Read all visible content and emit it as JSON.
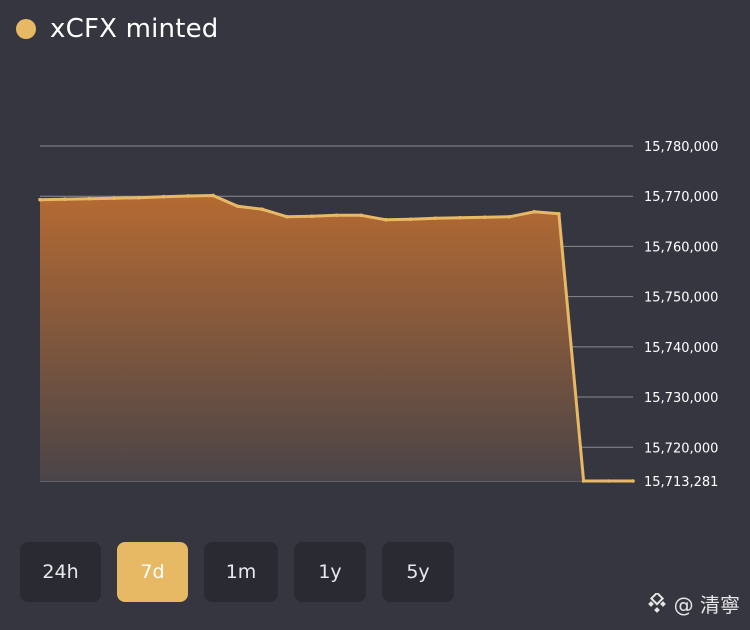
{
  "colors": {
    "accent": "#e8b964",
    "background": "#363641",
    "button_bg": "#2a2a32",
    "grid": "#8a8a90",
    "fill_top": "#b56a32",
    "fill_bottom": "#4a4448"
  },
  "header": {
    "title": "xCFX minted"
  },
  "range_buttons": [
    {
      "label": "24h",
      "active": false
    },
    {
      "label": "7d",
      "active": true
    },
    {
      "label": "1m",
      "active": false
    },
    {
      "label": "1y",
      "active": false
    },
    {
      "label": "5y",
      "active": false
    }
  ],
  "watermark": {
    "icon": "binance-square-logo-icon",
    "text": "@ 清寧"
  },
  "chart_data": {
    "type": "area",
    "title": "xCFX minted",
    "xlabel": "",
    "ylabel": "",
    "ylim": [
      15713281,
      15780000
    ],
    "y_ticks": [
      15780000,
      15770000,
      15760000,
      15750000,
      15740000,
      15730000,
      15720000
    ],
    "y_tick_labels": [
      "15,780,000",
      "15,770,000",
      "15,760,000",
      "15,750,000",
      "15,740,000",
      "15,730,000",
      "15,720,000"
    ],
    "last_value_label": "15,713,281",
    "grid": true,
    "series": [
      {
        "values": [
          15769300,
          15769400,
          15769500,
          15769600,
          15769700,
          15769900,
          15770050,
          15770150,
          15768000,
          15767400,
          15765900,
          15766000,
          15766200,
          15766200,
          15765300,
          15765400,
          15765600,
          15765700,
          15765800,
          15765900,
          15766900,
          15766500,
          15713281,
          15713281,
          15713281
        ]
      }
    ]
  }
}
